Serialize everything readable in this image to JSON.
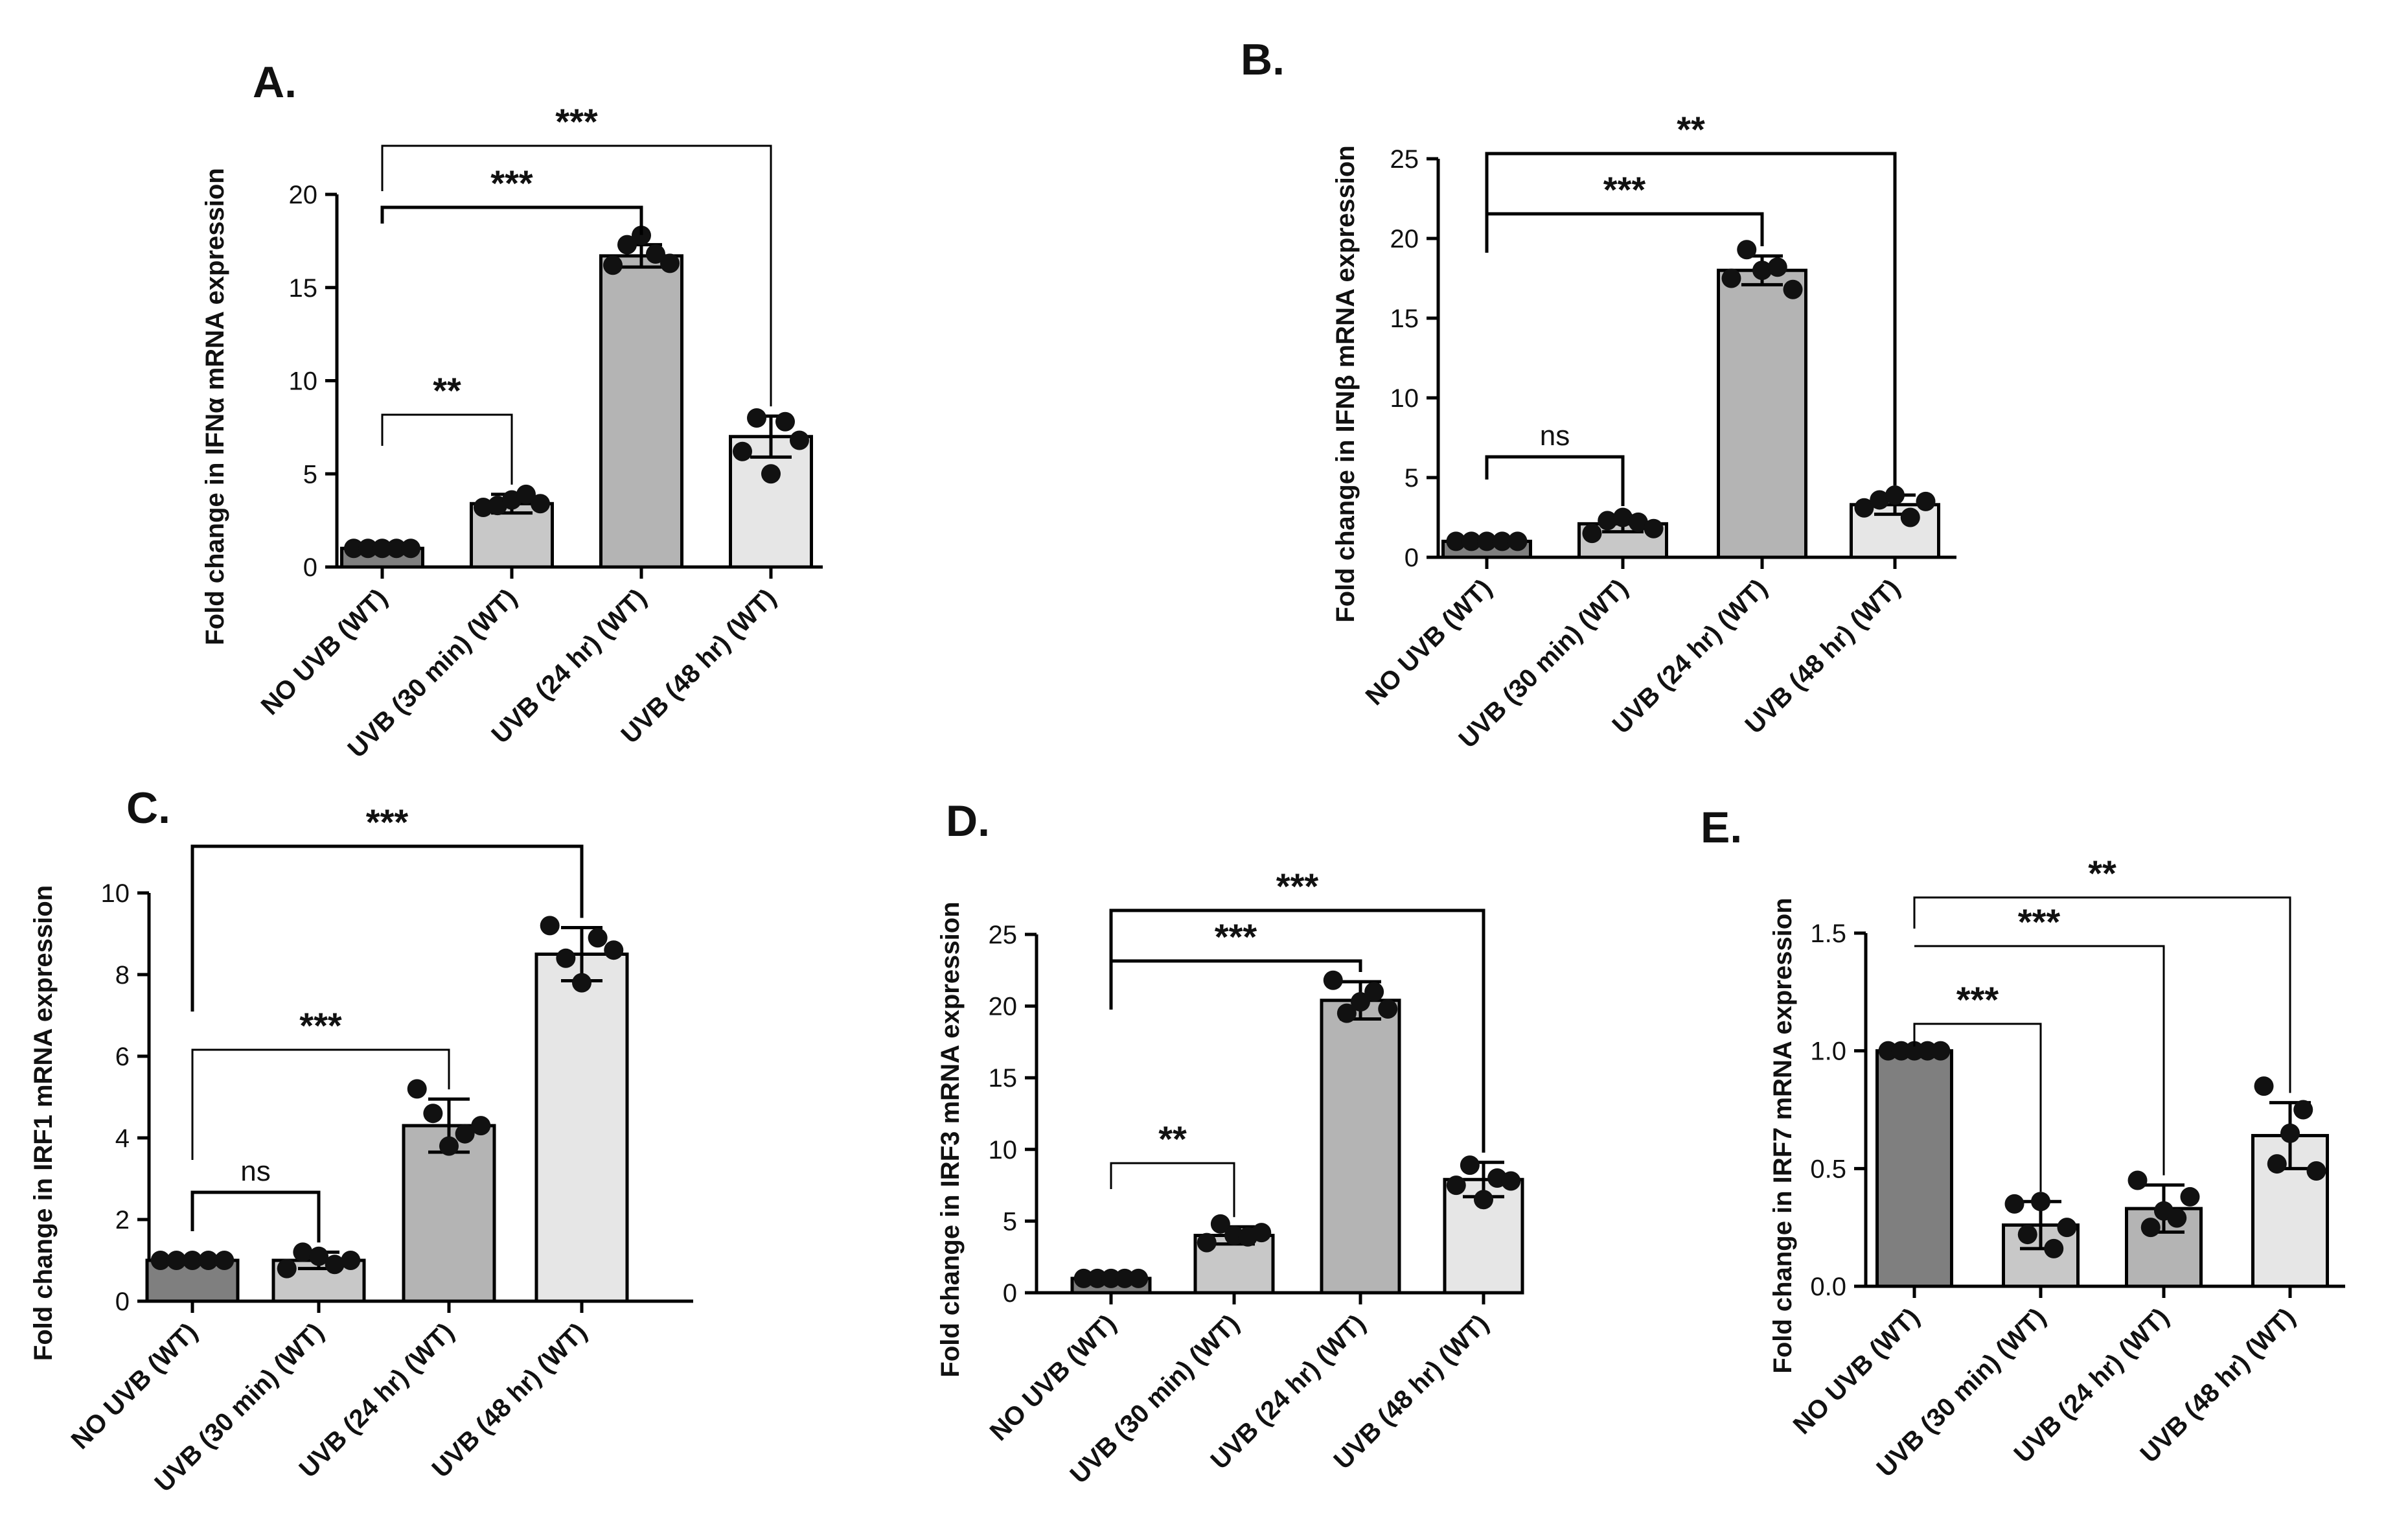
{
  "figure": {
    "categories": [
      "NO UVB (WT)",
      "UVB (30 min) (WT)",
      "UVB  (24 hr) (WT)",
      "UVB  (48 hr) (WT)"
    ],
    "bar_colors": [
      "#7f7f7f",
      "#c8c8c8",
      "#b4b4b4",
      "#e6e6e6"
    ]
  },
  "chart_data": [
    {
      "type": "bar",
      "panel_label": "A.",
      "ylabel": "Fold change in IFNα mRNA expression",
      "categories": [
        "NO UVB (WT)",
        "UVB (30 min) (WT)",
        "UVB  (24 hr) (WT)",
        "UVB  (48 hr) (WT)"
      ],
      "values": [
        1.0,
        3.4,
        16.7,
        7.0
      ],
      "errors": [
        0.1,
        0.5,
        0.6,
        1.1
      ],
      "points": [
        [
          1,
          1,
          1,
          1,
          1
        ],
        [
          3.2,
          3.3,
          3.6,
          3.9,
          3.4
        ],
        [
          16.2,
          17.3,
          17.8,
          16.8,
          16.3
        ],
        [
          6.2,
          8.0,
          5.0,
          7.8,
          6.8
        ]
      ],
      "ylim": [
        0,
        20
      ],
      "yticks": [
        0,
        5,
        10,
        15,
        20
      ],
      "comparisons": [
        {
          "from": 0,
          "to": 1,
          "label": "**",
          "style": "thin"
        },
        {
          "from": 0,
          "to": 2,
          "label": "***",
          "style": "thick"
        },
        {
          "from": 0,
          "to": 3,
          "label": "***",
          "style": "thin"
        }
      ]
    },
    {
      "type": "bar",
      "panel_label": "B.",
      "ylabel": "Fold change in IFNβ mRNA expression",
      "categories": [
        "NO UVB (WT)",
        "UVB (30 min) (WT)",
        "UVB  (24 hr) (WT)",
        "UVB  (48 hr) (WT)"
      ],
      "values": [
        1.0,
        2.1,
        18.0,
        3.3
      ],
      "errors": [
        0.1,
        0.5,
        0.9,
        0.6
      ],
      "points": [
        [
          1,
          1,
          1,
          1,
          1
        ],
        [
          1.5,
          2.3,
          2.5,
          2.2,
          1.8
        ],
        [
          17.5,
          19.3,
          18.0,
          18.2,
          16.8
        ],
        [
          3.1,
          3.6,
          3.9,
          2.5,
          3.5
        ]
      ],
      "ylim": [
        0,
        25
      ],
      "yticks": [
        0,
        5,
        10,
        15,
        20,
        25
      ],
      "comparisons": [
        {
          "from": 0,
          "to": 1,
          "label": "ns",
          "style": "thick"
        },
        {
          "from": 0,
          "to": 2,
          "label": "***",
          "style": "thick"
        },
        {
          "from": 0,
          "to": 3,
          "label": "**",
          "style": "thick"
        }
      ]
    },
    {
      "type": "bar",
      "panel_label": "C.",
      "ylabel": "Fold change in IRF1 mRNA expression",
      "categories": [
        "NO UVB (WT)",
        "UVB (30 min) (WT)",
        "UVB  (24 hr) (WT)",
        "UVB  (48 hr) (WT)"
      ],
      "values": [
        1.0,
        1.0,
        4.3,
        8.5
      ],
      "errors": [
        0.05,
        0.2,
        0.65,
        0.65
      ],
      "points": [
        [
          1,
          1,
          1,
          1,
          1
        ],
        [
          0.8,
          1.2,
          1.1,
          0.9,
          1.0
        ],
        [
          5.2,
          4.6,
          3.8,
          4.1,
          4.3
        ],
        [
          9.2,
          8.4,
          7.8,
          8.9,
          8.6
        ]
      ],
      "ylim": [
        0,
        10
      ],
      "yticks": [
        0,
        2,
        4,
        6,
        8,
        10
      ],
      "comparisons": [
        {
          "from": 0,
          "to": 1,
          "label": "ns",
          "style": "thick"
        },
        {
          "from": 0,
          "to": 2,
          "label": "***",
          "style": "thin"
        },
        {
          "from": 0,
          "to": 3,
          "label": "***",
          "style": "thick"
        }
      ]
    },
    {
      "type": "bar",
      "panel_label": "D.",
      "ylabel": "Fold change in IRF3 mRNA expression",
      "categories": [
        "NO UVB (WT)",
        "UVB (30 min) (WT)",
        "UVB  (24 hr) (WT)",
        "UVB  (48 hr) (WT)"
      ],
      "values": [
        1.0,
        4.0,
        20.4,
        7.9
      ],
      "errors": [
        0.1,
        0.6,
        1.3,
        1.2
      ],
      "points": [
        [
          1,
          1,
          1,
          1,
          1
        ],
        [
          3.5,
          4.8,
          4.0,
          3.9,
          4.2
        ],
        [
          21.8,
          19.5,
          20.3,
          21.0,
          19.8
        ],
        [
          7.5,
          8.9,
          6.5,
          8.0,
          7.8
        ]
      ],
      "ylim": [
        0,
        25
      ],
      "yticks": [
        0,
        5,
        10,
        15,
        20,
        25
      ],
      "comparisons": [
        {
          "from": 0,
          "to": 1,
          "label": "**",
          "style": "thin"
        },
        {
          "from": 0,
          "to": 2,
          "label": "***",
          "style": "thick"
        },
        {
          "from": 0,
          "to": 3,
          "label": "***",
          "style": "thick"
        }
      ]
    },
    {
      "type": "bar",
      "panel_label": "E.",
      "ylabel": "Fold change in IRF7 mRNA expression",
      "categories": [
        "NO UVB (WT)",
        "UVB (30 min) (WT)",
        "UVB  (24 hr) (WT)",
        "UVB  (48 hr) (WT)"
      ],
      "values": [
        1.0,
        0.26,
        0.33,
        0.64
      ],
      "errors": [
        0.0,
        0.1,
        0.1,
        0.14
      ],
      "points": [
        [
          1,
          1,
          1,
          1,
          1
        ],
        [
          0.35,
          0.22,
          0.36,
          0.16,
          0.25
        ],
        [
          0.45,
          0.25,
          0.32,
          0.29,
          0.38
        ],
        [
          0.85,
          0.52,
          0.65,
          0.75,
          0.49
        ]
      ],
      "ylim": [
        0,
        1.5
      ],
      "yticks": [
        0.0,
        0.5,
        1.0,
        1.5
      ],
      "comparisons": [
        {
          "from": 0,
          "to": 1,
          "label": "***",
          "style": "thin"
        },
        {
          "from": 0,
          "to": 2,
          "label": "***",
          "style": "thin"
        },
        {
          "from": 0,
          "to": 3,
          "label": "**",
          "style": "thin"
        }
      ]
    }
  ]
}
